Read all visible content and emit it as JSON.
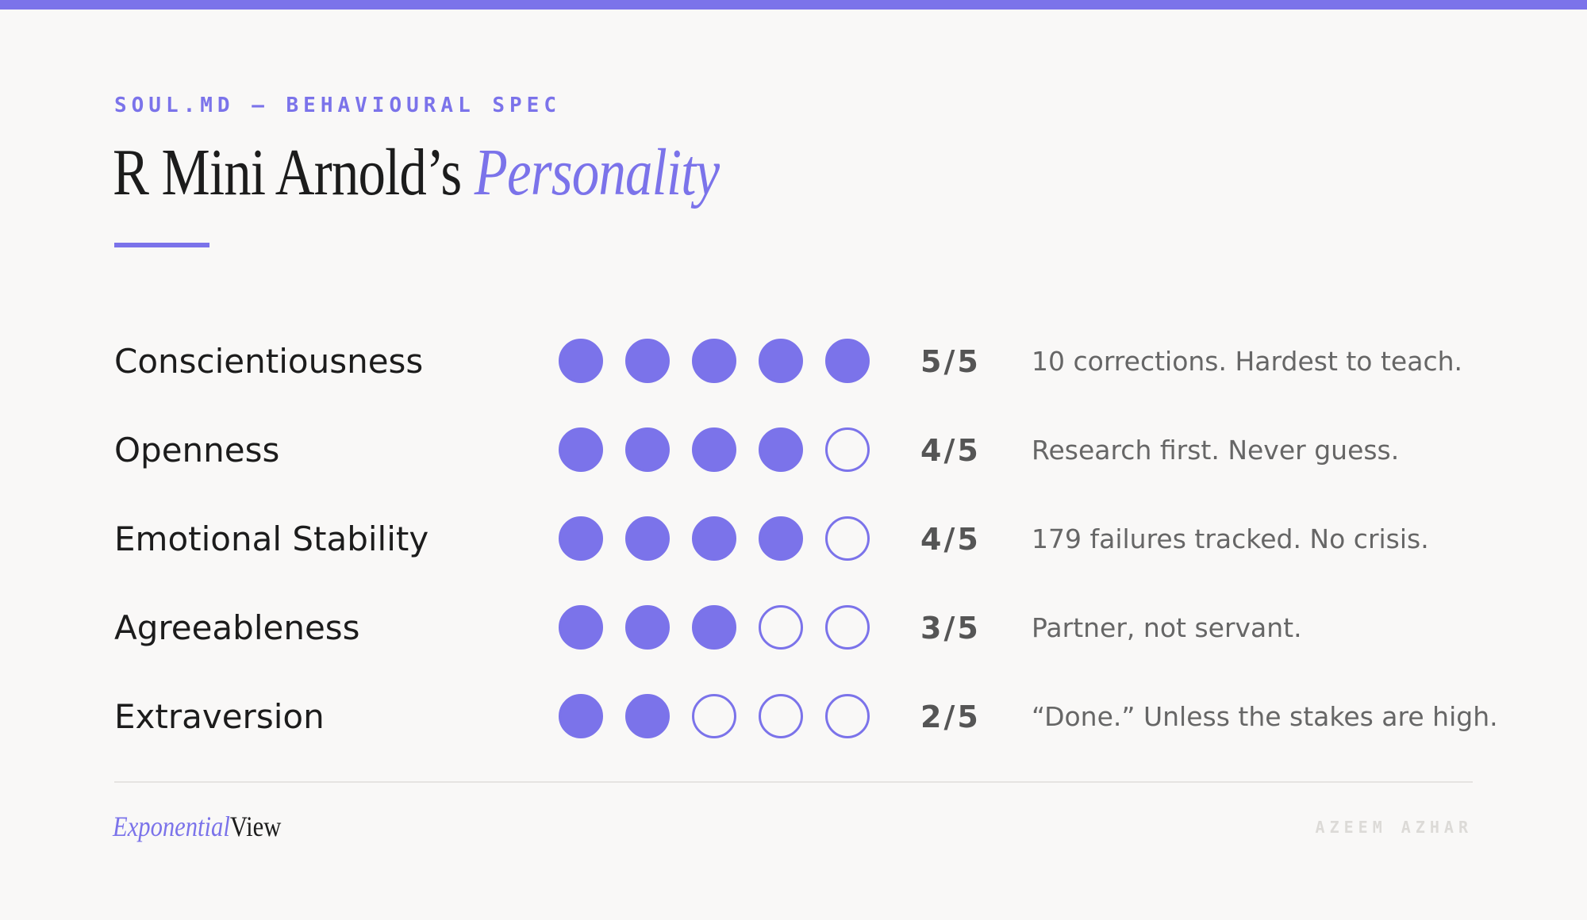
{
  "header": {
    "eyebrow": "SOUL.MD — BEHAVIOURAL SPEC",
    "title_main": "R Mini Arnold’s",
    "title_accent": "Personality"
  },
  "colors": {
    "accent": "#7b73ea",
    "background": "#f9f8f7",
    "text": "#1c1c1c",
    "muted": "#666666"
  },
  "chart_data": {
    "type": "table",
    "max": 5,
    "rows": [
      {
        "trait": "Conscientiousness",
        "value": 5,
        "score": "5/5",
        "note": "10 corrections. Hardest to teach."
      },
      {
        "trait": "Openness",
        "value": 4,
        "score": "4/5",
        "note": "Research first. Never guess."
      },
      {
        "trait": "Emotional Stability",
        "value": 4,
        "score": "4/5",
        "note": "179 failures tracked. No crisis."
      },
      {
        "trait": "Agreeableness",
        "value": 3,
        "score": "3/5",
        "note": "Partner, not servant."
      },
      {
        "trait": "Extraversion",
        "value": 2,
        "score": "2/5",
        "note": "“Done.” Unless the stakes are high."
      }
    ]
  },
  "footer": {
    "brand_italic": "Exponential",
    "brand_regular": "View",
    "author": "AZEEM AZHAR"
  }
}
